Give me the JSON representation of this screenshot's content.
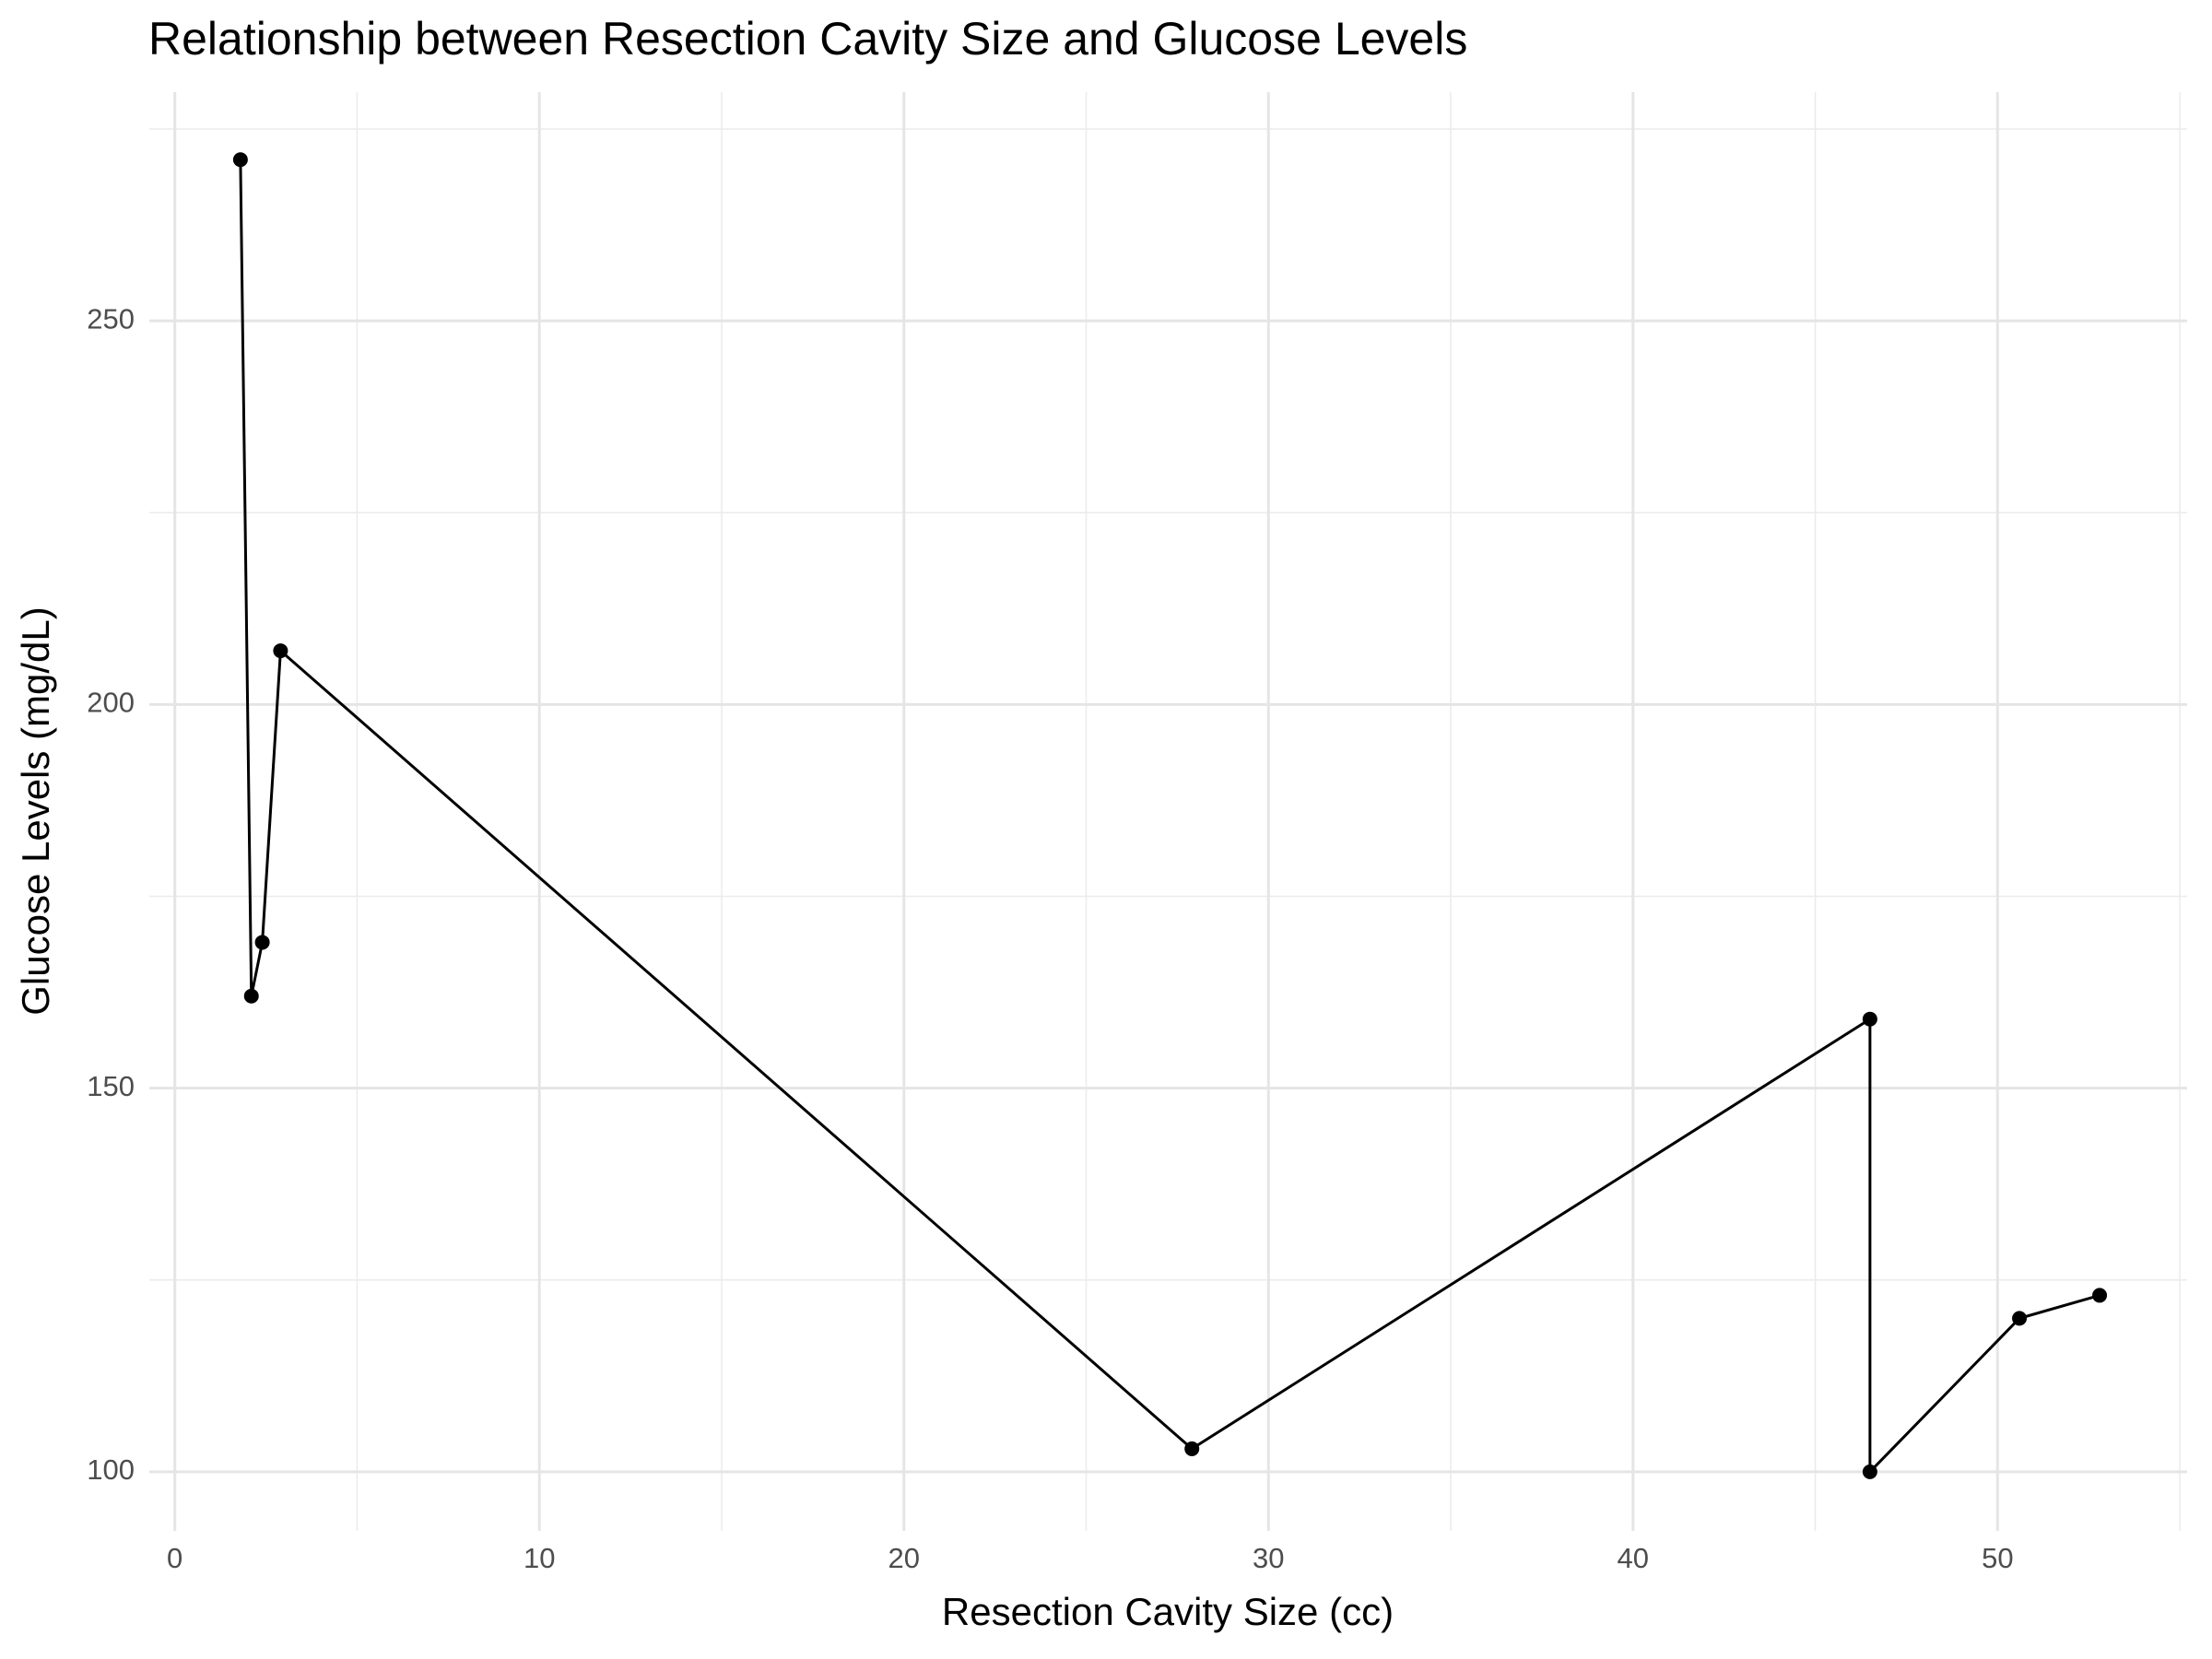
{
  "chart_data": {
    "type": "line",
    "title": "Relationship between Resection Cavity Size and Glucose Levels",
    "x_label": "Resection Cavity Size (cc)",
    "y_label": "Glucose Levels (mg/dL)",
    "x": [
      1.8,
      2.1,
      2.4,
      2.9,
      27.9,
      46.5,
      46.5,
      50.6,
      52.8
    ],
    "values": [
      271,
      162,
      169,
      207,
      103,
      159,
      100,
      120,
      123
    ],
    "color": "#000000",
    "markers": true,
    "xlim": [
      -0.7,
      55.2
    ],
    "xticks": [
      0,
      10,
      20,
      30,
      40,
      50
    ],
    "ylim": [
      92.3,
      279.8
    ],
    "yticks": [
      100,
      150,
      200,
      250
    ],
    "grid": true
  }
}
